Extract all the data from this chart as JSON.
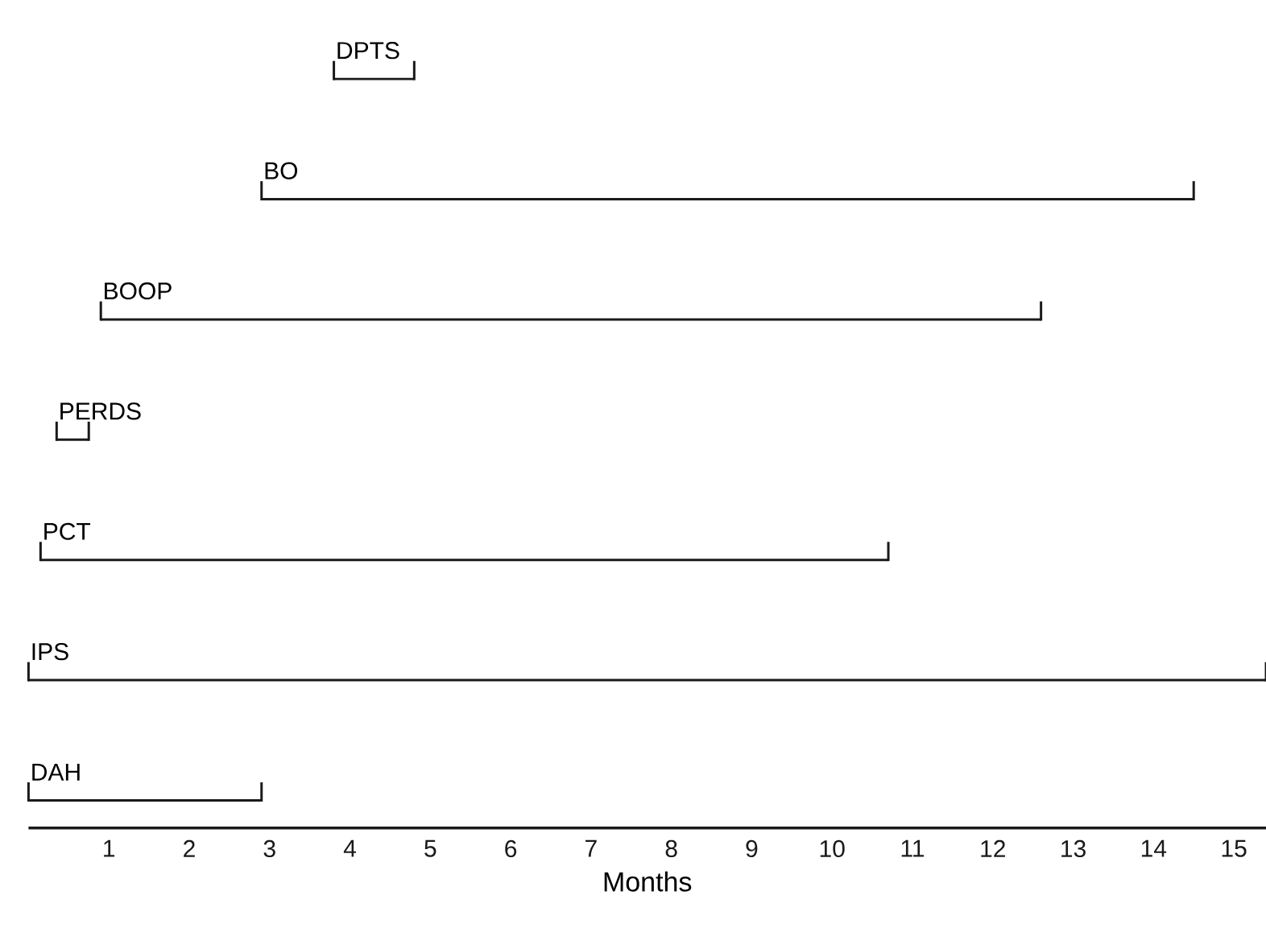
{
  "chart_data": {
    "type": "bar",
    "orientation": "horizontal",
    "xlabel": "Months",
    "categories": [
      "DPTS",
      "BO",
      "BOOP",
      "PERDS",
      "PCT",
      "IPS",
      "DAH"
    ],
    "base": [
      3.8,
      2.9,
      0.9,
      0.35,
      0.15,
      0,
      0
    ],
    "values": [
      1.0,
      11.6,
      11.7,
      0.4,
      10.55,
      15.4,
      2.9
    ],
    "color": "#1a1a1a",
    "xlim": [
      0,
      15.4
    ],
    "xticks": [
      1,
      2,
      3,
      4,
      5,
      6,
      7,
      8,
      9,
      10,
      11,
      12,
      13,
      14,
      15
    ],
    "tick_labels": "x"
  }
}
